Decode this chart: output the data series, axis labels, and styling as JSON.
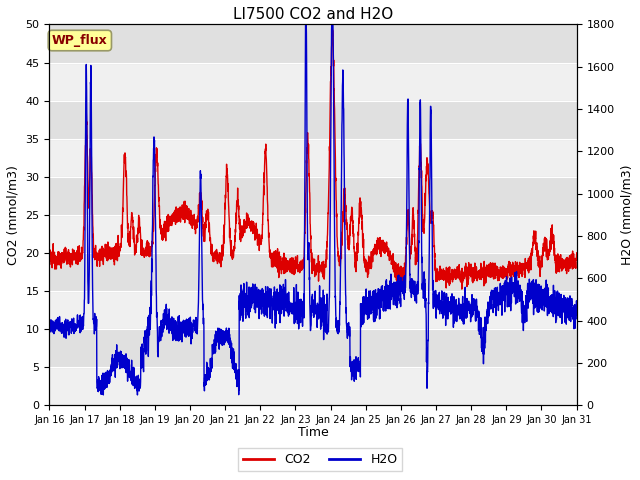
{
  "title": "LI7500 CO2 and H2O",
  "xlabel": "Time",
  "ylabel_left": "CO2 (mmol/m3)",
  "ylabel_right": "H2O (mmol/m3)",
  "ylim_left": [
    0,
    50
  ],
  "ylim_right": [
    0,
    1800
  ],
  "yticks_left": [
    0,
    5,
    10,
    15,
    20,
    25,
    30,
    35,
    40,
    45,
    50
  ],
  "yticks_right": [
    0,
    200,
    400,
    600,
    800,
    1000,
    1200,
    1400,
    1600,
    1800
  ],
  "xtick_labels": [
    "Jan 16",
    "Jan 17",
    "Jan 18",
    "Jan 19",
    "Jan 20",
    "Jan 21",
    "Jan 22",
    "Jan 23",
    "Jan 24",
    "Jan 25",
    "Jan 26",
    "Jan 27",
    "Jan 28",
    "Jan 29",
    "Jan 30",
    "Jan 31"
  ],
  "co2_color": "#DD0000",
  "h2o_color": "#0000CC",
  "plot_bg_color": "#F0F0F0",
  "stripe_color": "#E0E0E0",
  "annotation_text": "WP_flux",
  "annotation_color": "#880000",
  "annotation_bg": "#FFFF99",
  "annotation_edge": "#999966",
  "legend_co2": "CO2",
  "legend_h2o": "H2O",
  "linewidth": 1.0,
  "title_fontsize": 11,
  "axis_fontsize": 9,
  "tick_fontsize": 8,
  "legend_fontsize": 9
}
